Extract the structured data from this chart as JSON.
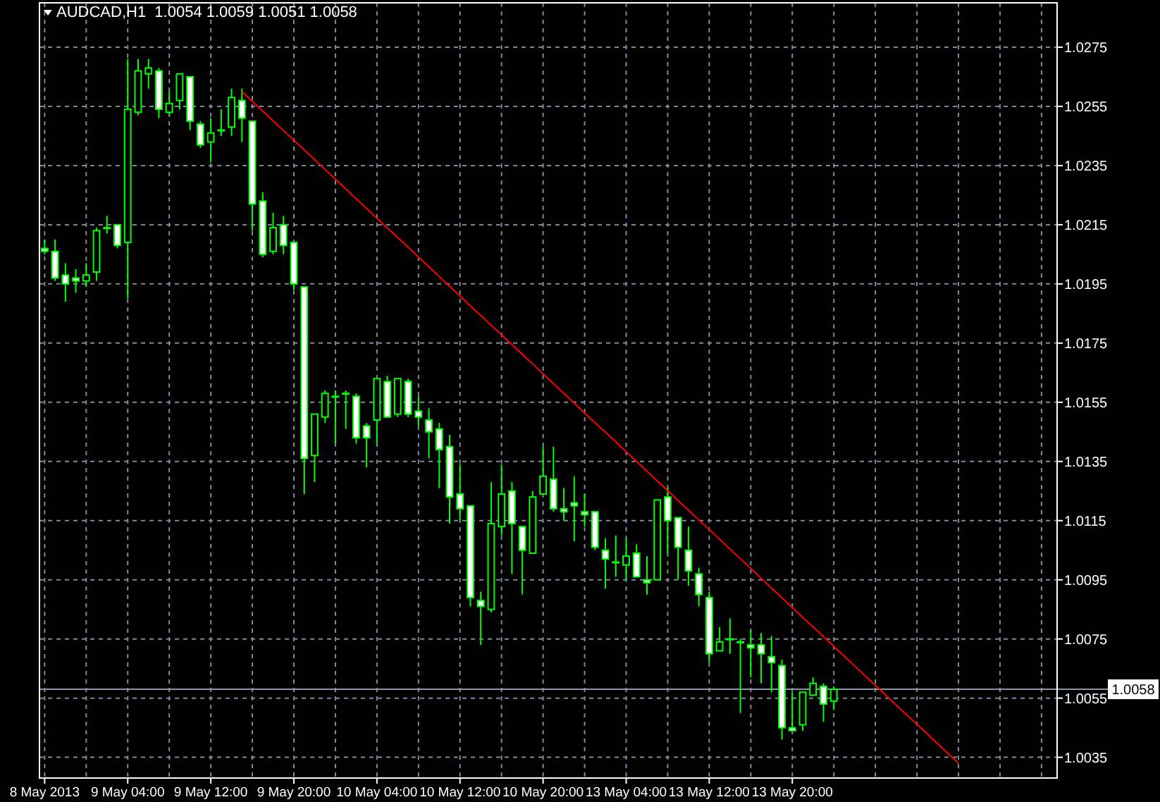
{
  "chart_data": {
    "type": "candlestick",
    "title": "AUDCAD,H1  1.0054 1.0059 1.0051 1.0058",
    "categories": [
      "8 May 2013",
      null,
      null,
      null,
      null,
      null,
      null,
      null,
      "9 May 04:00",
      null,
      null,
      null,
      null,
      null,
      null,
      null,
      "9 May 12:00",
      null,
      null,
      null,
      null,
      null,
      null,
      null,
      "9 May 20:00",
      null,
      null,
      null,
      null,
      null,
      null,
      null,
      "10 May 04:00",
      null,
      null,
      null,
      null,
      null,
      null,
      null,
      "10 May 12:00",
      null,
      null,
      null,
      null,
      null,
      null,
      null,
      "10 May 20:00",
      null,
      null,
      null,
      null,
      null,
      null,
      null,
      "13 May 04:00",
      null,
      null,
      null,
      null,
      null,
      null,
      null,
      "13 May 12:00",
      null,
      null,
      null,
      null,
      null,
      null,
      null,
      "13 May 20:00",
      null,
      null,
      null,
      null,
      null,
      null,
      null,
      null,
      null,
      null,
      null,
      null,
      null,
      null,
      null,
      null,
      null,
      null,
      null,
      null,
      null,
      null,
      null,
      null,
      null
    ],
    "ylim": [
      1.0028,
      1.029
    ],
    "yticks": [
      1.0035,
      1.0055,
      1.0075,
      1.0095,
      1.0115,
      1.0135,
      1.0155,
      1.0175,
      1.0195,
      1.0215,
      1.0235,
      1.0255,
      1.0275
    ],
    "grid": true,
    "series": [
      {
        "color": "#00ff00",
        "ohlc": [
          [
            1.0207,
            1.021,
            1.0205,
            1.0206
          ],
          [
            1.0206,
            1.021,
            1.0196,
            1.0197
          ],
          [
            1.0198,
            1.0202,
            1.0189,
            1.0195
          ],
          [
            1.0197,
            1.02,
            1.0192,
            1.0196
          ],
          [
            1.0196,
            1.0202,
            1.0194,
            1.0198
          ],
          [
            1.0199,
            1.0214,
            1.0196,
            1.0213
          ],
          [
            1.0214,
            1.0218,
            1.0212,
            1.0214
          ],
          [
            1.0215,
            1.0215,
            1.0207,
            1.0208
          ],
          [
            1.0209,
            1.0271,
            1.019,
            1.0254
          ],
          [
            1.0253,
            1.0271,
            1.0252,
            1.0267
          ],
          [
            1.0266,
            1.0271,
            1.0261,
            1.0268
          ],
          [
            1.0267,
            1.0268,
            1.0251,
            1.0254
          ],
          [
            1.0253,
            1.026,
            1.0252,
            1.0256
          ],
          [
            1.0257,
            1.0266,
            1.0254,
            1.0266
          ],
          [
            1.0265,
            1.0265,
            1.0247,
            1.025
          ],
          [
            1.0249,
            1.025,
            1.0241,
            1.0242
          ],
          [
            1.0243,
            1.0251,
            1.0236,
            1.0246
          ],
          [
            1.0247,
            1.0254,
            1.0245,
            1.0247
          ],
          [
            1.0248,
            1.0261,
            1.0245,
            1.0258
          ],
          [
            1.0257,
            1.0261,
            1.0243,
            1.0251
          ],
          [
            1.025,
            1.025,
            1.0213,
            1.0222
          ],
          [
            1.0223,
            1.0226,
            1.0204,
            1.0205
          ],
          [
            1.0206,
            1.0219,
            1.0205,
            1.0214
          ],
          [
            1.0215,
            1.0218,
            1.0205,
            1.0208
          ],
          [
            1.0209,
            1.0209,
            1.0193,
            1.0195
          ],
          [
            1.0194,
            1.0194,
            1.0124,
            1.0136
          ],
          [
            1.0137,
            1.0151,
            1.0128,
            1.0151
          ],
          [
            1.015,
            1.0159,
            1.0148,
            1.0158
          ],
          [
            1.0157,
            1.0159,
            1.0141,
            1.0157
          ],
          [
            1.0158,
            1.0159,
            1.0146,
            1.0158
          ],
          [
            1.0157,
            1.0158,
            1.0141,
            1.0143
          ],
          [
            1.0147,
            1.0148,
            1.0133,
            1.0143
          ],
          [
            1.0149,
            1.0163,
            1.0141,
            1.0163
          ],
          [
            1.0162,
            1.0164,
            1.015,
            1.015
          ],
          [
            1.0151,
            1.0163,
            1.015,
            1.0163
          ],
          [
            1.0162,
            1.0163,
            1.015,
            1.0151
          ],
          [
            1.0152,
            1.0157,
            1.0147,
            1.015
          ],
          [
            1.0149,
            1.0153,
            1.0136,
            1.0145
          ],
          [
            1.0146,
            1.0148,
            1.0126,
            1.0139
          ],
          [
            1.014,
            1.0144,
            1.0114,
            1.0123
          ],
          [
            1.0124,
            1.0134,
            1.0115,
            1.0119
          ],
          [
            1.012,
            1.012,
            1.0086,
            1.0089
          ],
          [
            1.0088,
            1.0091,
            1.0073,
            1.0086
          ],
          [
            1.0085,
            1.0128,
            1.0084,
            1.0114
          ],
          [
            1.0113,
            1.0134,
            1.011,
            1.0124
          ],
          [
            1.0125,
            1.0128,
            1.0097,
            1.0114
          ],
          [
            1.0113,
            1.0113,
            1.009,
            1.0105
          ],
          [
            1.0104,
            1.0125,
            1.0104,
            1.0123
          ],
          [
            1.0124,
            1.014,
            1.0124,
            1.013
          ],
          [
            1.0129,
            1.014,
            1.0118,
            1.0119
          ],
          [
            1.0119,
            1.0126,
            1.0115,
            1.0118
          ],
          [
            1.0121,
            1.013,
            1.0108,
            1.012
          ],
          [
            1.0118,
            1.0124,
            1.0113,
            1.0117
          ],
          [
            1.0118,
            1.0118,
            1.0105,
            1.0106
          ],
          [
            1.0105,
            1.0109,
            1.0092,
            1.0102
          ],
          [
            1.0101,
            1.011,
            1.0096,
            1.0101
          ],
          [
            1.01,
            1.0109,
            1.0095,
            1.0103
          ],
          [
            1.0104,
            1.0107,
            1.0096,
            1.0096
          ],
          [
            1.0095,
            1.0103,
            1.009,
            1.0094
          ],
          [
            1.0095,
            1.0122,
            1.0095,
            1.0122
          ],
          [
            1.0123,
            1.0126,
            1.0104,
            1.0115
          ],
          [
            1.0116,
            1.0116,
            1.0095,
            1.0106
          ],
          [
            1.0105,
            1.0113,
            1.0093,
            1.0098
          ],
          [
            1.0097,
            1.0099,
            1.0086,
            1.009
          ],
          [
            1.0089,
            1.0091,
            1.0067,
            1.007
          ],
          [
            1.0071,
            1.0079,
            1.0071,
            1.0074
          ],
          [
            1.0075,
            1.0082,
            1.007,
            1.0075
          ],
          [
            1.0074,
            1.0075,
            1.005,
            1.0074
          ],
          [
            1.0073,
            1.0078,
            1.0062,
            1.0072
          ],
          [
            1.0073,
            1.0077,
            1.006,
            1.007
          ],
          [
            1.0069,
            1.0076,
            1.0057,
            1.0067
          ],
          [
            1.0066,
            1.0068,
            1.0041,
            1.0045
          ],
          [
            1.0045,
            1.0057,
            1.0044,
            1.0044
          ],
          [
            1.0046,
            1.0057,
            1.0044,
            1.0057
          ],
          [
            1.0056,
            1.0062,
            1.0056,
            1.006
          ],
          [
            1.0059,
            1.006,
            1.0047,
            1.0053
          ],
          [
            1.0054,
            1.0059,
            1.0051,
            1.0058
          ],
          null,
          null,
          null,
          null,
          null,
          null,
          null,
          null,
          null,
          null,
          null,
          null,
          null,
          null,
          null,
          null,
          null,
          null,
          null,
          null,
          null
        ]
      },
      {
        "type": "line",
        "color": "#ff0000",
        "values": [
          null,
          null,
          null,
          null,
          null,
          null,
          null,
          null,
          null,
          null,
          null,
          null,
          null,
          null,
          null,
          null,
          null,
          null,
          null,
          1.026,
          1.02567,
          1.02534,
          1.02501,
          1.02468,
          1.02436,
          1.02403,
          1.0237,
          1.02337,
          1.02304,
          1.02271,
          1.02238,
          1.02205,
          1.02172,
          1.02139,
          1.02107,
          1.02074,
          1.02041,
          1.02008,
          1.01975,
          1.01942,
          1.01909,
          1.01876,
          1.01843,
          1.0181,
          1.01778,
          1.01745,
          1.01712,
          1.01679,
          1.01646,
          1.01613,
          1.0158,
          1.01547,
          1.01514,
          1.01481,
          1.01449,
          1.01416,
          1.01383,
          1.0135,
          1.01317,
          1.01284,
          1.01251,
          1.01218,
          1.01185,
          1.01152,
          1.0112,
          1.01087,
          1.01054,
          1.01021,
          1.00988,
          1.00955,
          1.00922,
          1.00889,
          1.00856,
          1.00823,
          1.00791,
          1.00758,
          1.00725,
          1.00692,
          1.00659,
          1.00626,
          1.00593,
          1.0056,
          1.00527,
          1.00494,
          1.00462,
          1.00429,
          1.00396,
          1.00363,
          1.0033,
          null,
          null,
          null,
          null,
          null,
          null,
          null,
          null,
          null
        ]
      }
    ],
    "ref_lines": [
      {
        "axis": "y",
        "value": 1.0058,
        "label": "1.0058",
        "color": "#8a96a3"
      }
    ]
  }
}
